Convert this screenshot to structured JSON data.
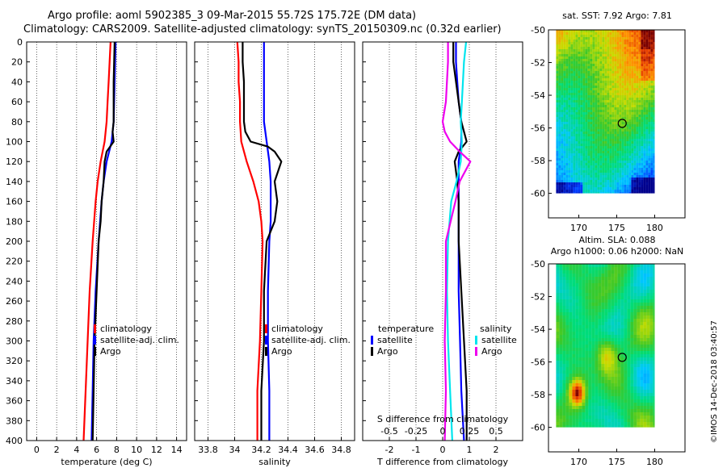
{
  "title_line1": "Argo profile: aoml 5902385_3 09-Mar-2015 55.72S 175.72E (DM data)",
  "title_line2": "Climatology: CARS2009. Satellite-adjusted climatology: synTS_20150309.nc (0.32d earlier)",
  "credit": "©IMOS 14-Dec-2018 03:40:57",
  "colors": {
    "climatology": "#ff0000",
    "satellite": "#0000ff",
    "argo": "#000000",
    "salinity_satellite": "#00e5ee",
    "salinity_argo": "#ee00ee"
  },
  "chart_data": [
    {
      "type": "line",
      "id": "temperature",
      "xlabel": "temperature (deg C)",
      "ylabel": "",
      "xlim": [
        -1,
        15
      ],
      "ylim": [
        400,
        0
      ],
      "xticks": [
        0,
        2,
        4,
        6,
        8,
        10,
        12,
        14
      ],
      "yticks": [
        0,
        20,
        40,
        60,
        80,
        100,
        120,
        140,
        160,
        180,
        200,
        220,
        240,
        260,
        280,
        300,
        320,
        340,
        360,
        380,
        400
      ],
      "legend": [
        "climatology",
        "satellite-adj. clim.",
        "Argo"
      ],
      "series": [
        {
          "name": "climatology",
          "color": "#ff0000",
          "depth": [
            0,
            20,
            40,
            60,
            80,
            100,
            120,
            140,
            160,
            200,
            250,
            300,
            350,
            400
          ],
          "values": [
            7.4,
            7.3,
            7.2,
            7.1,
            7.0,
            6.8,
            6.4,
            6.1,
            5.9,
            5.6,
            5.3,
            5.1,
            4.9,
            4.7
          ]
        },
        {
          "name": "satellite-adj. clim.",
          "color": "#0000ff",
          "depth": [
            0,
            20,
            40,
            60,
            80,
            100,
            120,
            140,
            160,
            200,
            250,
            300,
            350,
            400
          ],
          "values": [
            7.9,
            7.85,
            7.8,
            7.75,
            7.7,
            7.5,
            7.0,
            6.7,
            6.5,
            6.2,
            5.9,
            5.7,
            5.6,
            5.5
          ]
        },
        {
          "name": "Argo",
          "color": "#000000",
          "depth": [
            0,
            20,
            40,
            60,
            80,
            90,
            100,
            110,
            120,
            140,
            160,
            180,
            200,
            250,
            300,
            350,
            400
          ],
          "values": [
            7.8,
            7.75,
            7.7,
            7.7,
            7.7,
            7.6,
            7.7,
            7.0,
            6.8,
            6.7,
            6.5,
            6.4,
            6.2,
            6.0,
            5.8,
            5.7,
            5.6
          ]
        }
      ]
    },
    {
      "type": "line",
      "id": "salinity",
      "xlabel": "salinity",
      "ylabel": "",
      "xlim": [
        33.7,
        34.9
      ],
      "ylim": [
        400,
        0
      ],
      "xticks": [
        33.8,
        34,
        34.2,
        34.4,
        34.6,
        34.8
      ],
      "legend": [
        "climatology",
        "satellite-adj. clim.",
        "Argo"
      ],
      "series": [
        {
          "name": "climatology",
          "color": "#ff0000",
          "depth": [
            0,
            20,
            40,
            60,
            80,
            100,
            120,
            140,
            160,
            180,
            200,
            250,
            300,
            350,
            400
          ],
          "values": [
            34.02,
            34.03,
            34.03,
            34.04,
            34.04,
            34.05,
            34.09,
            34.14,
            34.18,
            34.2,
            34.21,
            34.2,
            34.19,
            34.17,
            34.17
          ]
        },
        {
          "name": "satellite-adj. clim.",
          "color": "#0000ff",
          "depth": [
            0,
            20,
            40,
            60,
            80,
            100,
            120,
            140,
            160,
            180,
            200,
            250,
            300,
            350,
            400
          ],
          "values": [
            34.22,
            34.22,
            34.22,
            34.22,
            34.22,
            34.24,
            34.26,
            34.27,
            34.27,
            34.27,
            34.26,
            34.25,
            34.25,
            34.26,
            34.26
          ]
        },
        {
          "name": "Argo",
          "color": "#000000",
          "depth": [
            0,
            20,
            40,
            60,
            80,
            90,
            100,
            105,
            110,
            120,
            140,
            160,
            180,
            200,
            250,
            300,
            350,
            400
          ],
          "values": [
            34.06,
            34.06,
            34.07,
            34.07,
            34.07,
            34.08,
            34.12,
            34.25,
            34.3,
            34.35,
            34.3,
            34.32,
            34.3,
            34.24,
            34.22,
            34.22,
            34.2,
            34.2
          ]
        }
      ]
    },
    {
      "type": "line",
      "id": "difference",
      "xlabel": "T difference from climatology",
      "top_label": "S difference from climatology",
      "xlim": [
        -3,
        3
      ],
      "ylim": [
        400,
        0
      ],
      "xticks": [
        -2,
        -1,
        0,
        1,
        2
      ],
      "s_xticks": [
        -0.5,
        -0.25,
        0,
        0.25,
        0.5
      ],
      "s_xlim": [
        -0.75,
        0.75
      ],
      "legend_temperature": {
        "title": "temperature",
        "items": [
          "satellite",
          "Argo"
        ]
      },
      "legend_salinity": {
        "title": "salinity",
        "items": [
          "satellite",
          "Argo"
        ]
      },
      "series": [
        {
          "name": "T satellite",
          "color": "#0000ff",
          "axis": "T",
          "depth": [
            0,
            20,
            40,
            60,
            80,
            100,
            120,
            140,
            160,
            200,
            250,
            300,
            350,
            400
          ],
          "values": [
            0.5,
            0.5,
            0.55,
            0.6,
            0.7,
            0.7,
            0.6,
            0.6,
            0.6,
            0.6,
            0.6,
            0.65,
            0.7,
            0.8
          ]
        },
        {
          "name": "T Argo",
          "color": "#000000",
          "axis": "T",
          "depth": [
            0,
            20,
            40,
            60,
            80,
            90,
            100,
            110,
            120,
            140,
            160,
            200,
            250,
            300,
            350,
            400
          ],
          "values": [
            0.4,
            0.4,
            0.5,
            0.6,
            0.7,
            0.8,
            0.9,
            0.6,
            0.45,
            0.55,
            0.6,
            0.6,
            0.7,
            0.8,
            0.9,
            0.9
          ]
        },
        {
          "name": "S satellite",
          "color": "#00e5ee",
          "axis": "S",
          "depth": [
            0,
            20,
            40,
            60,
            80,
            100,
            120,
            140,
            160,
            200,
            250,
            300,
            350,
            400
          ],
          "values": [
            0.22,
            0.2,
            0.19,
            0.18,
            0.17,
            0.18,
            0.17,
            0.13,
            0.08,
            0.05,
            0.04,
            0.05,
            0.07,
            0.09
          ]
        },
        {
          "name": "S Argo",
          "color": "#ee00ee",
          "axis": "S",
          "depth": [
            0,
            20,
            40,
            60,
            80,
            90,
            100,
            110,
            120,
            140,
            160,
            200,
            250,
            300,
            350,
            400
          ],
          "values": [
            0.05,
            0.05,
            0.04,
            0.03,
            0.0,
            0.02,
            0.07,
            0.16,
            0.26,
            0.16,
            0.12,
            0.03,
            0.03,
            0.02,
            0.03,
            0.02
          ]
        }
      ]
    },
    {
      "type": "heatmap",
      "id": "sst_map",
      "title": "sat. SST: 7.92 Argo: 7.81",
      "xlim": [
        166,
        184
      ],
      "ylim": [
        -61.5,
        -50
      ],
      "xticks": [
        170,
        175,
        180
      ],
      "yticks": [
        -50,
        -52,
        -54,
        -56,
        -58,
        -60
      ],
      "data_extent": {
        "lon": [
          167,
          180
        ],
        "lat": [
          -60,
          -50
        ]
      },
      "profile_point": {
        "lon": 175.72,
        "lat": -55.72
      }
    },
    {
      "type": "heatmap",
      "id": "sla_map",
      "title": "Altim. SLA: 0.088",
      "subtitle": "Argo h1000: 0.06 h2000: NaN",
      "xlim": [
        166,
        184
      ],
      "ylim": [
        -61.5,
        -50
      ],
      "xticks": [
        170,
        175,
        180
      ],
      "yticks": [
        -50,
        -52,
        -54,
        -56,
        -58,
        -60
      ],
      "data_extent": {
        "lon": [
          167,
          180
        ],
        "lat": [
          -60,
          -50
        ]
      },
      "profile_point": {
        "lon": 175.72,
        "lat": -55.72
      }
    }
  ]
}
